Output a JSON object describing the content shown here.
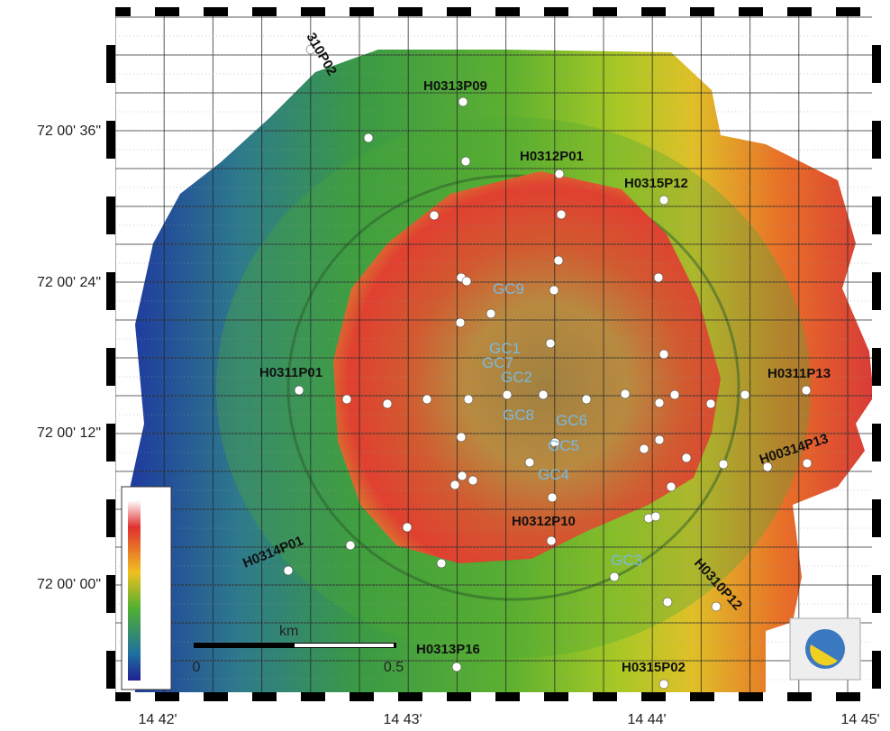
{
  "map": {
    "latitude_labels": [
      "72 00' 36\"",
      "72 00' 24\"",
      "72 00' 12\"",
      "72 00' 00\""
    ],
    "longitude_labels": [
      "14 42'",
      "14 43'",
      "14 44'",
      "14 45'"
    ],
    "stations": [
      "310P02",
      "H0313P09",
      "H0312P01",
      "H0315P12",
      "H0311P01",
      "H0311P13",
      "H00314P13",
      "H0312P10",
      "H0314P01",
      "H0310P12",
      "H0313P16",
      "H0315P02"
    ],
    "cores": [
      "GC9",
      "GC1",
      "GC7",
      "GC2",
      "GC8",
      "GC6",
      "GC5",
      "GC4",
      "GC3"
    ],
    "scale": {
      "unit": "km",
      "ticks": [
        "0",
        "0.5"
      ]
    }
  }
}
